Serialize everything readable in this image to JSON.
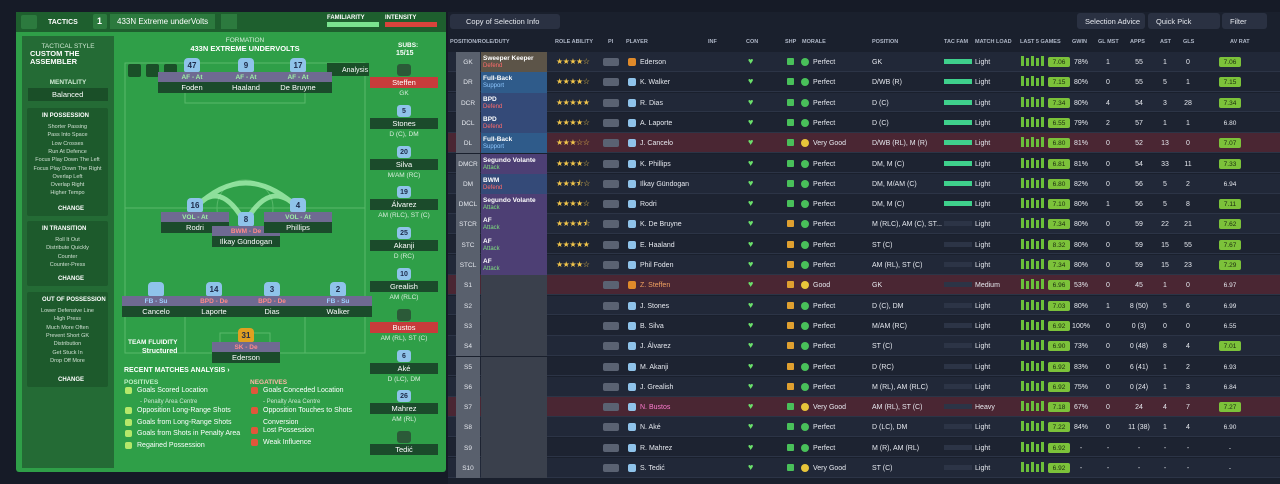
{
  "header": {
    "tactics": "TACTICS",
    "slot": "1",
    "tactic_name": "433N Extreme underVolts",
    "familiarity": "FAMILIARITY",
    "intensity": "INTENSITY"
  },
  "tactical_style": {
    "label": "TACTICAL STYLE",
    "name": "CUSTOM THE ASSEMBLER",
    "mentality_label": "MENTALITY",
    "mentality": "Balanced"
  },
  "instructions": [
    {
      "title": "IN POSSESSION",
      "items": [
        "Shorter Passing",
        "Pass Into Space",
        "Low Crosses",
        "Run At Defence",
        "Focus Play Down The Left",
        "Focus Play Down The Right",
        "Overlap Left",
        "Overlap Right",
        "Higher Tempo"
      ],
      "change": "CHANGE"
    },
    {
      "title": "IN TRANSITION",
      "items": [
        "Roll It Out",
        "Distribute Quickly",
        "Counter",
        "Counter-Press"
      ],
      "change": "CHANGE"
    },
    {
      "title": "OUT OF POSSESSION",
      "items": [
        "Lower Defensive Line",
        "High Press",
        "Much More Often",
        "Prevent Short GK",
        "Distribution",
        "Get Stuck In",
        "Drop Off More"
      ],
      "change": "CHANGE"
    }
  ],
  "formation": {
    "label": "FORMATION",
    "name": "433N EXTREME UNDERVOLTS",
    "analysis": "Analysis",
    "fluidity_label": "TEAM FLUIDITY",
    "fluidity": "Structured",
    "players": [
      {
        "role": "AF - At",
        "number": "47",
        "name": "Foden"
      },
      {
        "role": "AF - At",
        "number": "9",
        "name": "Haaland"
      },
      {
        "role": "AF - At",
        "number": "17",
        "name": "De Bruyne"
      },
      {
        "role": "VOL - At",
        "number": "16",
        "name": "Rodri"
      },
      {
        "role": "BWM - De",
        "number": "8",
        "name": "Ilkay Gündogan"
      },
      {
        "role": "VOL - At",
        "number": "4",
        "name": "Phillips"
      },
      {
        "role": "FB - Su",
        "name": "Cancelo"
      },
      {
        "role": "BPD - De",
        "number": "14",
        "name": "Laporte"
      },
      {
        "role": "BPD - De",
        "number": "3",
        "name": "Dias"
      },
      {
        "role": "FB - Su",
        "number": "2",
        "name": "Walker"
      },
      {
        "role": "SK - De",
        "number": "31",
        "name": "Ederson"
      }
    ]
  },
  "subs": {
    "label": "SUBS:",
    "count": "15/15",
    "players": [
      {
        "name": "Steffen",
        "position": "GK",
        "highlight": true
      },
      {
        "name": "Stones",
        "number": "5",
        "position": "D (C), DM"
      },
      {
        "name": "Silva",
        "number": "20",
        "position": "M/AM (RC)"
      },
      {
        "name": "Álvarez",
        "number": "19",
        "position": "AM (RLC), ST (C)"
      },
      {
        "name": "Akanji",
        "number": "25",
        "position": "D (RC)"
      },
      {
        "name": "Grealish",
        "number": "10",
        "position": "AM (RLC)"
      },
      {
        "name": "Bustos",
        "position": "AM (RL), ST (C)",
        "highlight": true
      },
      {
        "name": "Aké",
        "number": "6",
        "position": "D (LC), DM"
      },
      {
        "name": "Mahrez",
        "number": "26",
        "position": "AM (RL)"
      },
      {
        "name": "Tedić"
      }
    ]
  },
  "recent": {
    "title": "RECENT MATCHES ANALYSIS ›",
    "positives_label": "POSITIVES",
    "positives": [
      "Goals Scored Location",
      "- Penalty Area Centre",
      "Opposition Long-Range Shots",
      "Goals from Long-Range Shots",
      "Goals from Shots in Penalty Area",
      "Regained Possession"
    ],
    "negatives_label": "NEGATIVES",
    "negatives": [
      "Goals Conceded Location",
      "- Penalty Area Centre",
      "Opposition Touches to Shots",
      "Conversion",
      "Lost Possession",
      "Weak Influence"
    ]
  },
  "table": {
    "toolbar": {
      "copy": "Copy of Selection Info",
      "advice": "Selection Advice",
      "quick": "Quick Pick",
      "filter": "Filter"
    },
    "columns": [
      "POSITION/ROLE/DUTY",
      "ROLE ABILITY",
      "PI",
      "PLAYER",
      "INF",
      "CON",
      "SHP",
      "MORALE",
      "POSITION",
      "TAC FAM",
      "MATCH LOAD",
      "LAST 5 GAMES",
      "GWIN",
      "GL MST",
      "APPS",
      "AST",
      "GLS",
      "AV RAT"
    ],
    "rows": [
      {
        "pos": "GK",
        "role": "Sweeper Keeper",
        "duty": "Defend",
        "ability": 4,
        "player": "Ederson",
        "morale": "Perfect",
        "position": "GK",
        "load": "Light",
        "form": "7.06",
        "gwin": "78%",
        "glmst": "1",
        "apps": "55",
        "ast": "1",
        "gls": "0",
        "avrat": "7.06"
      },
      {
        "pos": "DR",
        "role": "Full-Back",
        "duty": "Support",
        "ability": 4,
        "player": "K. Walker",
        "morale": "Perfect",
        "position": "D/WB (R)",
        "load": "Light",
        "form": "7.15",
        "gwin": "80%",
        "glmst": "0",
        "apps": "55",
        "ast": "5",
        "gls": "1",
        "avrat": "7.15"
      },
      {
        "pos": "DCR",
        "role": "BPD",
        "duty": "Defend",
        "ability": 5,
        "player": "R. Dias",
        "morale": "Perfect",
        "position": "D (C)",
        "load": "Light",
        "form": "7.34",
        "gwin": "80%",
        "glmst": "4",
        "apps": "54",
        "ast": "3",
        "gls": "28",
        "avrat": "7.34"
      },
      {
        "pos": "DCL",
        "role": "BPD",
        "duty": "Defend",
        "ability": 4,
        "player": "A. Laporte",
        "morale": "Perfect",
        "position": "D (C)",
        "load": "Light",
        "form": "6.55",
        "gwin": "79%",
        "glmst": "2",
        "apps": "57",
        "ast": "1",
        "gls": "1",
        "avrat": "6.80"
      },
      {
        "pos": "DL",
        "role": "Full-Back",
        "duty": "Support",
        "ability": 3,
        "player": "J. Cancelo",
        "morale": "Very Good",
        "position": "D/WB (RL), M (R)",
        "load": "Light",
        "form": "6.80",
        "gwin": "81%",
        "glmst": "0",
        "apps": "52",
        "ast": "13",
        "gls": "0",
        "avrat": "7.07",
        "highlight": true
      },
      {
        "pos": "DMCR",
        "role": "Segundo Volante",
        "duty": "Attack",
        "ability": 4,
        "player": "K. Phillips",
        "morale": "Perfect",
        "position": "DM, M (C)",
        "load": "Light",
        "form": "6.81",
        "gwin": "81%",
        "glmst": "0",
        "apps": "54",
        "ast": "33",
        "gls": "11",
        "avrat": "7.33"
      },
      {
        "pos": "DM",
        "role": "BWM",
        "duty": "Defend",
        "ability": 3.5,
        "player": "Ilkay Gündogan",
        "morale": "Perfect",
        "position": "DM, M/AM (C)",
        "load": "Light",
        "form": "6.80",
        "gwin": "82%",
        "glmst": "0",
        "apps": "56",
        "ast": "5",
        "gls": "2",
        "avrat": "6.94"
      },
      {
        "pos": "DMCL",
        "role": "Segundo Volante",
        "duty": "Attack",
        "ability": 4,
        "player": "Rodri",
        "morale": "Perfect",
        "position": "DM, M (C)",
        "load": "Light",
        "form": "7.10",
        "gwin": "80%",
        "glmst": "1",
        "apps": "56",
        "ast": "5",
        "gls": "8",
        "avrat": "7.11"
      },
      {
        "pos": "STCR",
        "role": "AF",
        "duty": "Attack",
        "ability": 4.5,
        "player": "K. De Bruyne",
        "morale": "Perfect",
        "position": "M (RLC), AM (C), ST...",
        "load": "Light",
        "form": "7.34",
        "gwin": "80%",
        "glmst": "0",
        "apps": "59",
        "ast": "22",
        "gls": "21",
        "avrat": "7.62"
      },
      {
        "pos": "STC",
        "role": "AF",
        "duty": "Attack",
        "ability": 5,
        "player": "E. Haaland",
        "morale": "Perfect",
        "position": "ST (C)",
        "load": "Light",
        "form": "8.32",
        "gwin": "80%",
        "glmst": "0",
        "apps": "59",
        "ast": "15",
        "gls": "55",
        "avrat": "7.67"
      },
      {
        "pos": "STCL",
        "role": "AF",
        "duty": "Attack",
        "ability": 4,
        "player": "Phil Foden",
        "morale": "Perfect",
        "position": "AM (RL), ST (C)",
        "load": "Light",
        "form": "7.34",
        "gwin": "80%",
        "glmst": "0",
        "apps": "59",
        "ast": "15",
        "gls": "23",
        "avrat": "7.29"
      },
      {
        "pos": "S1",
        "player": "Z. Steffen",
        "morale": "Good",
        "position": "GK",
        "load": "Medium",
        "form": "6.96",
        "gwin": "53%",
        "glmst": "0",
        "apps": "45",
        "ast": "1",
        "gls": "0",
        "avrat": "6.97",
        "highlight": true
      },
      {
        "pos": "S2",
        "player": "J. Stones",
        "morale": "Perfect",
        "position": "D (C), DM",
        "load": "Light",
        "form": "7.03",
        "gwin": "80%",
        "glmst": "1",
        "apps": "8 (50)",
        "ast": "5",
        "gls": "6",
        "avrat": "6.99"
      },
      {
        "pos": "S3",
        "player": "B. Silva",
        "morale": "Perfect",
        "position": "M/AM (RC)",
        "load": "Light",
        "form": "6.92",
        "gwin": "100%",
        "glmst": "0",
        "apps": "0 (3)",
        "ast": "0",
        "gls": "0",
        "avrat": "6.55"
      },
      {
        "pos": "S4",
        "player": "J. Álvarez",
        "morale": "Perfect",
        "position": "ST (C)",
        "load": "Light",
        "form": "6.90",
        "gwin": "73%",
        "glmst": "0",
        "apps": "0 (48)",
        "ast": "8",
        "gls": "4",
        "avrat": "7.01"
      },
      {
        "pos": "S5",
        "player": "M. Akanji",
        "morale": "Perfect",
        "position": "D (RC)",
        "load": "Light",
        "form": "6.92",
        "gwin": "83%",
        "glmst": "0",
        "apps": "6 (41)",
        "ast": "1",
        "gls": "2",
        "avrat": "6.93"
      },
      {
        "pos": "S6",
        "player": "J. Grealish",
        "morale": "Perfect",
        "position": "M (RL), AM (RLC)",
        "load": "Light",
        "form": "6.92",
        "gwin": "75%",
        "glmst": "0",
        "apps": "0 (24)",
        "ast": "1",
        "gls": "3",
        "avrat": "6.84"
      },
      {
        "pos": "S7",
        "player": "N. Bustos",
        "morale": "Very Good",
        "position": "AM (RL), ST (C)",
        "load": "Heavy",
        "form": "7.18",
        "gwin": "67%",
        "glmst": "0",
        "apps": "24",
        "ast": "4",
        "gls": "7",
        "avrat": "7.27",
        "highlight": true
      },
      {
        "pos": "S8",
        "player": "N. Aké",
        "morale": "Perfect",
        "position": "D (LC), DM",
        "load": "Light",
        "form": "7.22",
        "gwin": "84%",
        "glmst": "0",
        "apps": "11 (38)",
        "ast": "1",
        "gls": "4",
        "avrat": "6.90"
      },
      {
        "pos": "S9",
        "player": "R. Mahrez",
        "morale": "Perfect",
        "position": "M (R), AM (RL)",
        "load": "Light",
        "form": "6.92",
        "gwin": "-",
        "glmst": "-",
        "apps": "-",
        "ast": "-",
        "gls": "-",
        "avrat": "-"
      },
      {
        "pos": "S10",
        "player": "S. Tedić",
        "morale": "Very Good",
        "position": "ST (C)",
        "load": "Light",
        "form": "6.92",
        "gwin": "-",
        "glmst": "-",
        "apps": "-",
        "ast": "-",
        "gls": "-",
        "avrat": "-"
      }
    ]
  }
}
